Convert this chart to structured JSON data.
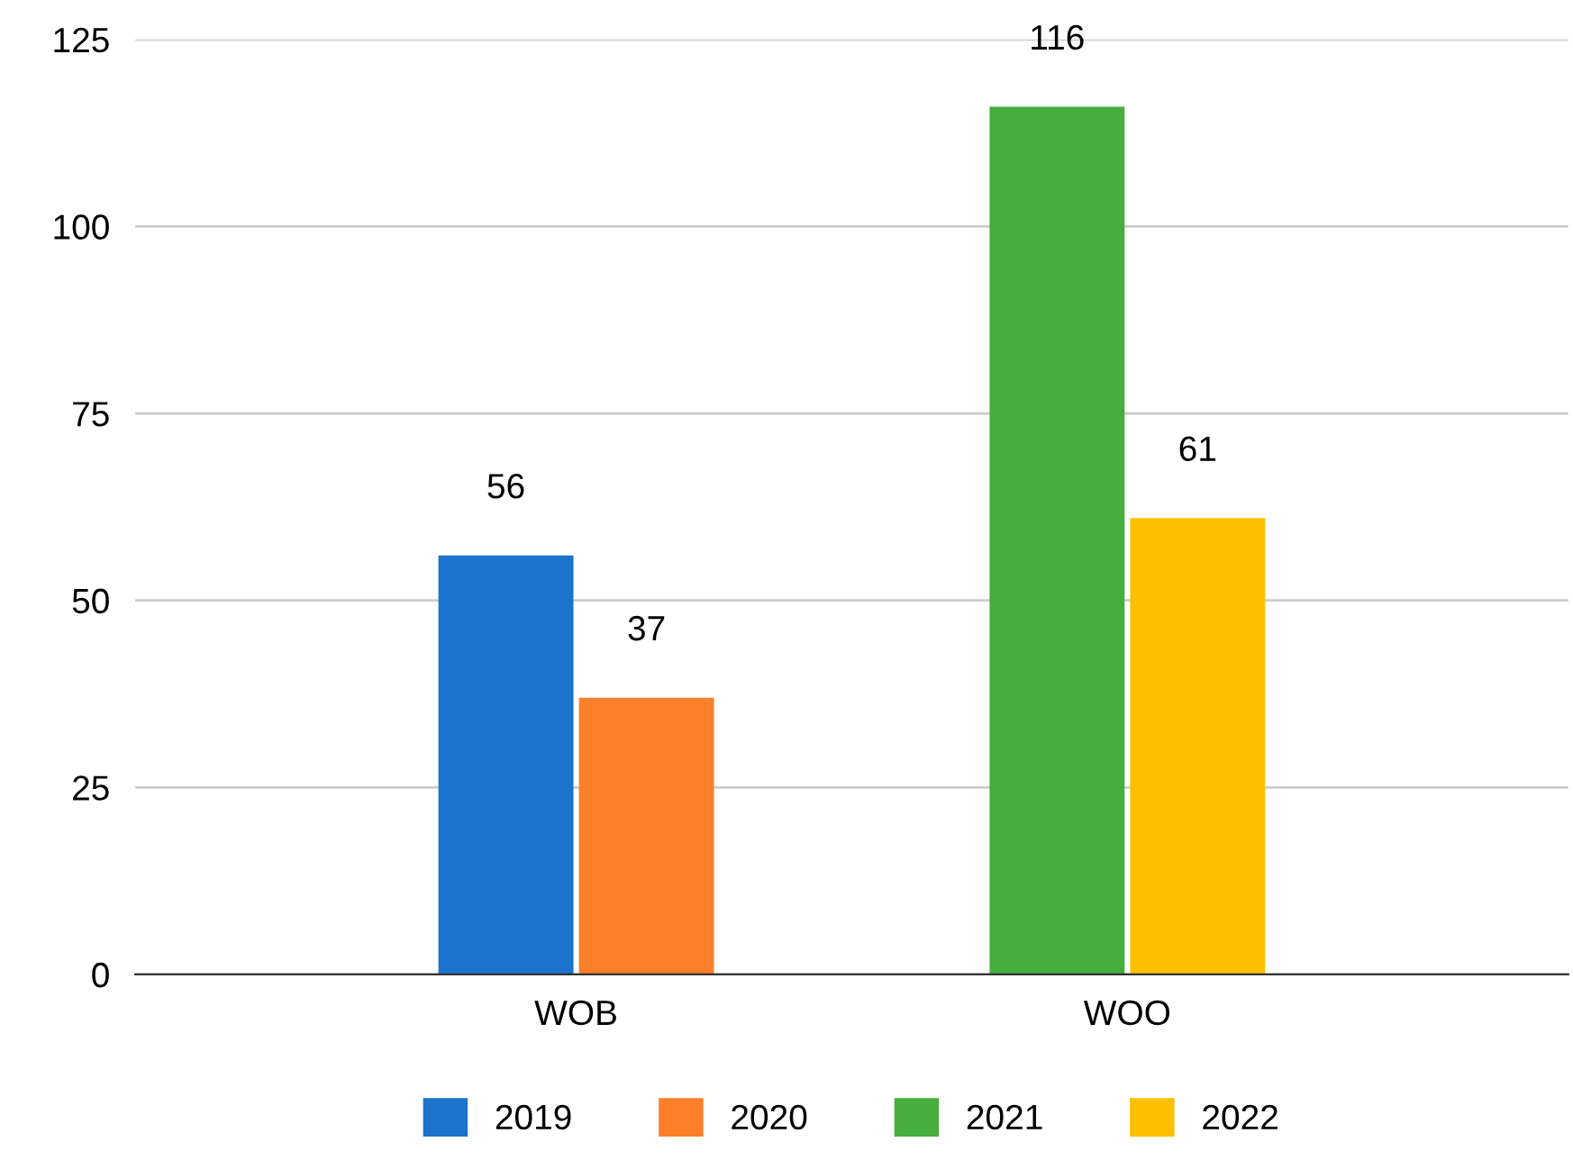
{
  "chart_data": {
    "type": "bar",
    "categories": [
      "WOB",
      "WOO"
    ],
    "series": [
      {
        "name": "2019",
        "color": "#1b73cd",
        "values": [
          56,
          null
        ]
      },
      {
        "name": "2020",
        "color": "#fd7f29",
        "values": [
          37,
          null
        ]
      },
      {
        "name": "2021",
        "color": "#46ae3c",
        "values": [
          null,
          116
        ]
      },
      {
        "name": "2022",
        "color": "#fdc000",
        "values": [
          null,
          61
        ]
      }
    ],
    "ylim": [
      0,
      125
    ],
    "yticks": [
      0,
      25,
      50,
      75,
      100,
      125
    ],
    "grid": "y",
    "legend": "bottom",
    "data_labels": true
  }
}
